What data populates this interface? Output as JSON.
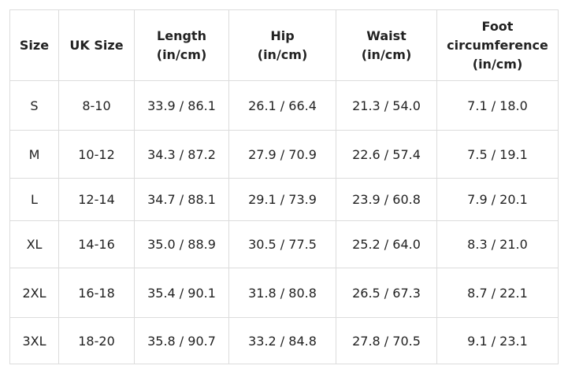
{
  "table": {
    "header": [
      [
        "Size"
      ],
      [
        "UK Size"
      ],
      [
        "Length",
        "(in/cm)"
      ],
      [
        "Hip",
        "(in/cm)"
      ],
      [
        "Waist",
        "(in/cm)"
      ],
      [
        "Foot",
        "circumference",
        "(in/cm)"
      ]
    ],
    "rows": [
      [
        "S",
        "8-10",
        "33.9 / 86.1",
        "26.1 / 66.4",
        "21.3 / 54.0",
        "7.1 / 18.0"
      ],
      [
        "M",
        "10-12",
        "34.3 / 87.2",
        "27.9 / 70.9",
        "22.6 / 57.4",
        "7.5 / 19.1"
      ],
      [
        "L",
        "12-14",
        "34.7 / 88.1",
        "29.1 / 73.9",
        "23.9 / 60.8",
        "7.9 / 20.1"
      ],
      [
        "XL",
        "14-16",
        "35.0 / 88.9",
        "30.5 / 77.5",
        "25.2 / 64.0",
        "8.3 / 21.0"
      ],
      [
        "2XL",
        "16-18",
        "35.4 / 90.1",
        "31.8 / 80.8",
        "26.5 / 67.3",
        "8.7 / 22.1"
      ],
      [
        "3XL",
        "18-20",
        "35.8 / 90.7",
        "33.2 / 84.8",
        "27.8 / 70.5",
        "9.1 / 23.1"
      ]
    ]
  }
}
